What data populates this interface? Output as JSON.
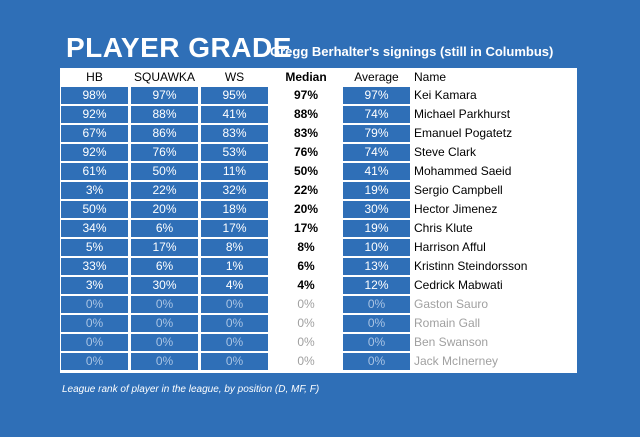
{
  "title": "PLAYER GRADE",
  "subtitle": "Gregg Berhalter's signings (still in Columbus)",
  "columns": {
    "hb": "HB",
    "squawka": "SQUAWKA",
    "ws": "WS",
    "median": "Median",
    "average": "Average",
    "name": "Name"
  },
  "players": [
    {
      "hb": "98%",
      "squawka": "97%",
      "ws": "95%",
      "median": "97%",
      "average": "97%",
      "name": "Kei Kamara",
      "active": true
    },
    {
      "hb": "92%",
      "squawka": "88%",
      "ws": "41%",
      "median": "88%",
      "average": "74%",
      "name": "Michael Parkhurst",
      "active": true
    },
    {
      "hb": "67%",
      "squawka": "86%",
      "ws": "83%",
      "median": "83%",
      "average": "79%",
      "name": "Emanuel Pogatetz",
      "active": true
    },
    {
      "hb": "92%",
      "squawka": "76%",
      "ws": "53%",
      "median": "76%",
      "average": "74%",
      "name": "Steve Clark",
      "active": true
    },
    {
      "hb": "61%",
      "squawka": "50%",
      "ws": "11%",
      "median": "50%",
      "average": "41%",
      "name": "Mohammed Saeid",
      "active": true
    },
    {
      "hb": "3%",
      "squawka": "22%",
      "ws": "32%",
      "median": "22%",
      "average": "19%",
      "name": "Sergio Campbell",
      "active": true
    },
    {
      "hb": "50%",
      "squawka": "20%",
      "ws": "18%",
      "median": "20%",
      "average": "30%",
      "name": "Hector Jimenez",
      "active": true
    },
    {
      "hb": "34%",
      "squawka": "6%",
      "ws": "17%",
      "median": "17%",
      "average": "19%",
      "name": "Chris Klute",
      "active": true
    },
    {
      "hb": "5%",
      "squawka": "17%",
      "ws": "8%",
      "median": "8%",
      "average": "10%",
      "name": "Harrison Afful",
      "active": true
    },
    {
      "hb": "33%",
      "squawka": "6%",
      "ws": "1%",
      "median": "6%",
      "average": "13%",
      "name": "Kristinn Steindorsson",
      "active": true
    },
    {
      "hb": "3%",
      "squawka": "30%",
      "ws": "4%",
      "median": "4%",
      "average": "12%",
      "name": "Cedrick Mabwati",
      "active": true
    },
    {
      "hb": "0%",
      "squawka": "0%",
      "ws": "0%",
      "median": "0%",
      "average": "0%",
      "name": "Gaston Sauro",
      "active": false
    },
    {
      "hb": "0%",
      "squawka": "0%",
      "ws": "0%",
      "median": "0%",
      "average": "0%",
      "name": "Romain Gall",
      "active": false
    },
    {
      "hb": "0%",
      "squawka": "0%",
      "ws": "0%",
      "median": "0%",
      "average": "0%",
      "name": "Ben Swanson",
      "active": false
    },
    {
      "hb": "0%",
      "squawka": "0%",
      "ws": "0%",
      "median": "0%",
      "average": "0%",
      "name": "Jack McInerney",
      "active": false
    }
  ],
  "footnote": "League rank of player in the league, by position (D, MF, F)",
  "colors": {
    "background": "#2f6fb7",
    "cell": "#2f6fb7",
    "inactive_text": "#a0a0a0"
  }
}
